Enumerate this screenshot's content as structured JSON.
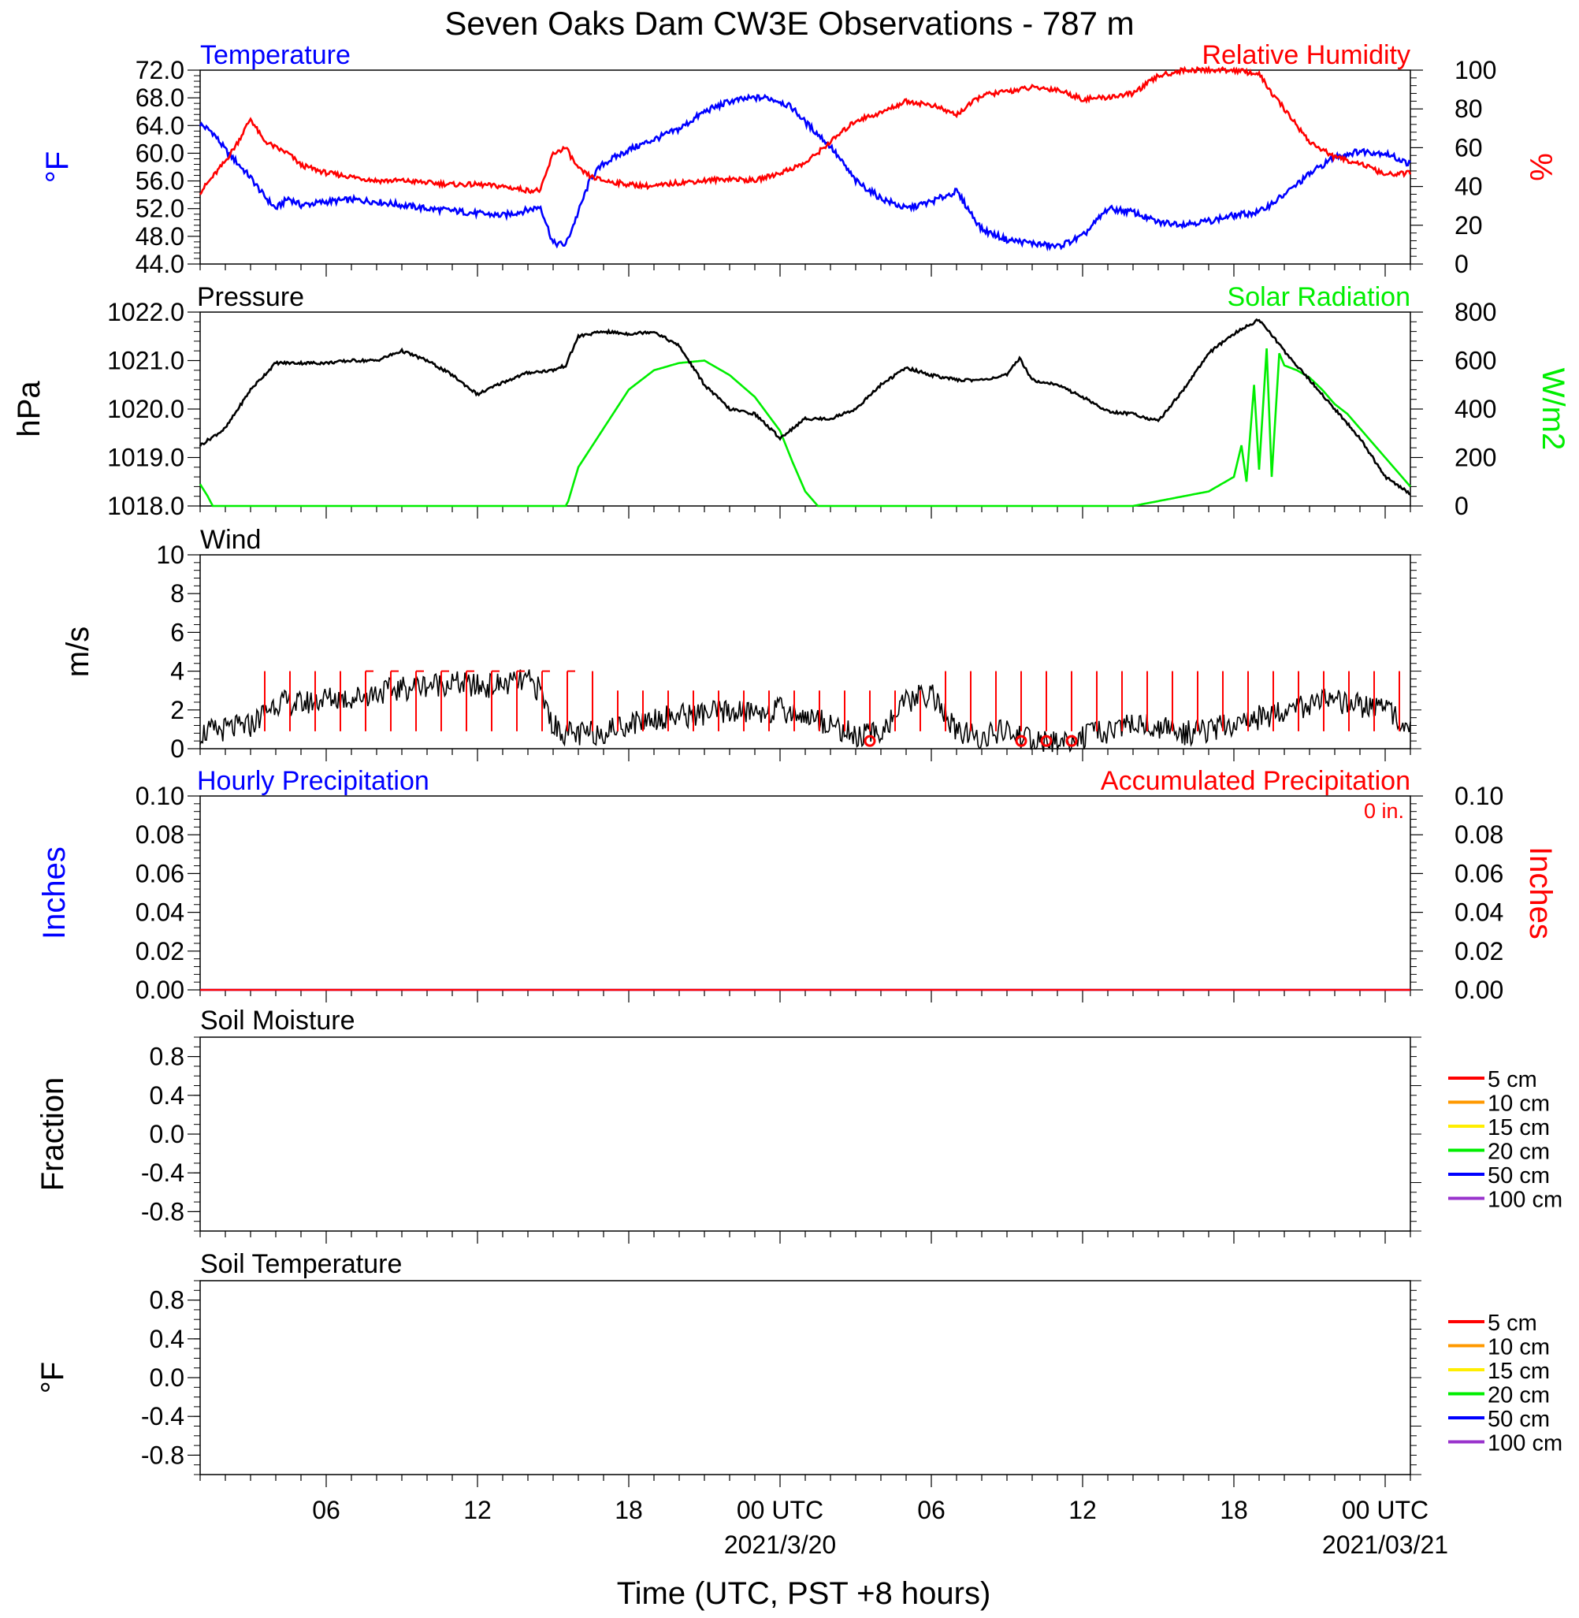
{
  "title": "Seven Oaks Dam CW3E Observations - 787 m",
  "colors": {
    "temperature": "#0000ff",
    "humidity": "#ff0000",
    "pressure": "#000000",
    "solar": "#00ee00",
    "wind": "#000000",
    "barb": "#ff0000",
    "hourly_precip": "#0000ff",
    "accum_precip": "#ff0000"
  },
  "x_axis": {
    "label": "Time (UTC, PST +8 hours)",
    "range_hours": [
      0,
      48
    ],
    "tick_labels": [
      {
        "hour": 5,
        "text": "06"
      },
      {
        "hour": 11,
        "text": "12"
      },
      {
        "hour": 17,
        "text": "18"
      },
      {
        "hour": 23,
        "text": "00 UTC",
        "sub": "2021/3/20"
      },
      {
        "hour": 29,
        "text": "06"
      },
      {
        "hour": 35,
        "text": "12"
      },
      {
        "hour": 41,
        "text": "18"
      },
      {
        "hour": 47,
        "text": "00 UTC",
        "sub": "2021/03/21"
      }
    ]
  },
  "chart_data": [
    {
      "type": "line",
      "panel": "temperature_humidity",
      "title_left": "Temperature",
      "title_right": "Relative Humidity",
      "ylabel_left": "°F",
      "ylabel_right": "%",
      "ylim_left": [
        44,
        72
      ],
      "ylim_right": [
        0,
        100
      ],
      "yticks_left": [
        "72.0",
        "68.0",
        "64.0",
        "60.0",
        "56.0",
        "52.0",
        "48.0",
        "44.0"
      ],
      "yticks_right": [
        "100",
        "80",
        "60",
        "40",
        "20",
        "0"
      ],
      "series": [
        {
          "name": "Temperature",
          "axis": "left",
          "x": [
            0,
            0.5,
            1,
            1.5,
            2,
            2.5,
            3,
            3.5,
            4,
            5,
            6,
            7,
            8,
            9,
            10,
            11,
            12,
            13,
            13.5,
            14,
            14.5,
            15,
            15.5,
            16,
            17,
            18,
            19,
            20,
            21,
            22,
            22.5,
            23,
            23.5,
            24,
            25,
            26,
            27,
            28,
            29,
            30,
            31,
            32,
            33,
            34,
            35,
            36,
            37,
            38,
            39,
            40,
            41,
            42,
            43,
            44,
            45,
            46,
            47,
            48
          ],
          "y": [
            64.2,
            63.0,
            60.5,
            58.5,
            56.5,
            54.0,
            52.0,
            53.5,
            52.5,
            53.0,
            53.3,
            53.0,
            52.5,
            52.0,
            51.7,
            51.3,
            51.0,
            51.8,
            52.3,
            47.0,
            46.8,
            51.5,
            56.5,
            58.5,
            60.5,
            62.0,
            63.5,
            66.0,
            67.5,
            68.0,
            68.0,
            67.5,
            66.5,
            64.5,
            61.0,
            56.0,
            53.5,
            52.0,
            53.0,
            54.5,
            49.0,
            47.5,
            47.0,
            46.5,
            48.0,
            52.0,
            51.5,
            50.0,
            49.8,
            50.2,
            51.0,
            51.5,
            54.0,
            57.0,
            59.5,
            60.3,
            60.0,
            58.4
          ]
        },
        {
          "name": "Relative Humidity",
          "axis": "right",
          "x": [
            0,
            1,
            1.5,
            2,
            2.5,
            3,
            3.5,
            4,
            5,
            6,
            7,
            8,
            9,
            10,
            11,
            12,
            13,
            13.5,
            14,
            14.5,
            15,
            15.5,
            16,
            17,
            18,
            19,
            20,
            21,
            22,
            23,
            24,
            25,
            26,
            27,
            28,
            29,
            30,
            31,
            32,
            33,
            34,
            35,
            36,
            37,
            38,
            39,
            40,
            41,
            42,
            42.5,
            43,
            44,
            45,
            46,
            47,
            48
          ],
          "y": [
            37,
            53,
            63,
            75,
            64,
            60,
            57,
            51,
            47,
            45,
            43,
            43,
            42,
            41,
            41,
            40,
            38,
            38,
            57,
            60,
            49,
            45,
            43,
            41,
            40,
            42,
            43,
            44,
            43,
            47,
            52,
            63,
            74,
            78,
            84,
            82,
            77,
            87,
            89,
            91,
            90,
            85,
            86,
            88,
            97,
            100,
            100,
            100,
            98,
            88,
            80,
            63,
            55,
            52,
            46,
            47
          ]
        }
      ]
    },
    {
      "type": "line",
      "panel": "pressure_solar",
      "title_left": "Pressure",
      "title_right": "Solar Radiation",
      "ylabel_left": "hPa",
      "ylabel_right": "W/m2",
      "ylim_left": [
        1018,
        1022
      ],
      "ylim_right": [
        0,
        800
      ],
      "yticks_left": [
        "1022.0",
        "1021.0",
        "1020.0",
        "1019.0",
        "1018.0"
      ],
      "yticks_right": [
        "800",
        "600",
        "400",
        "200",
        "0"
      ],
      "series": [
        {
          "name": "Pressure",
          "axis": "left",
          "x": [
            0,
            1,
            2,
            3,
            4,
            5,
            6,
            7,
            8,
            9,
            10,
            11,
            12,
            13,
            14,
            14.5,
            15,
            16,
            17,
            18,
            19,
            20,
            21,
            22,
            23,
            24,
            25,
            26,
            27,
            28,
            29,
            30,
            31,
            32,
            32.5,
            33,
            34,
            35,
            36,
            37,
            38,
            39,
            40,
            41,
            41.5,
            42,
            43,
            44,
            45,
            46,
            47,
            48
          ],
          "y": [
            1019.25,
            1019.6,
            1020.4,
            1020.95,
            1020.95,
            1020.95,
            1021.0,
            1021.0,
            1021.2,
            1021.0,
            1020.7,
            1020.3,
            1020.55,
            1020.75,
            1020.8,
            1020.9,
            1021.5,
            1021.6,
            1021.55,
            1021.6,
            1021.3,
            1020.5,
            1020.0,
            1019.9,
            1019.4,
            1019.8,
            1019.8,
            1020.0,
            1020.5,
            1020.85,
            1020.7,
            1020.6,
            1020.6,
            1020.7,
            1021.05,
            1020.6,
            1020.5,
            1020.25,
            1019.95,
            1019.9,
            1019.75,
            1020.4,
            1021.15,
            1021.55,
            1021.7,
            1021.85,
            1021.2,
            1020.6,
            1020.0,
            1019.4,
            1018.6,
            1018.25
          ]
        },
        {
          "name": "Solar Radiation",
          "axis": "right",
          "x": [
            0,
            0.3,
            0.5,
            14.5,
            14.6,
            15,
            16,
            17,
            18,
            19,
            20,
            21,
            22,
            23,
            23.5,
            24,
            24.5,
            25,
            37,
            38,
            39,
            40,
            41,
            41.3,
            41.5,
            41.8,
            42,
            42.3,
            42.5,
            42.8,
            43,
            43.5,
            44,
            44.5,
            45,
            45.5,
            46,
            47,
            48
          ],
          "y": [
            90,
            40,
            0,
            0,
            20,
            160,
            320,
            480,
            560,
            590,
            600,
            540,
            450,
            310,
            180,
            60,
            0,
            0,
            0,
            20,
            40,
            60,
            120,
            250,
            100,
            500,
            150,
            650,
            120,
            630,
            580,
            560,
            530,
            480,
            420,
            380,
            320,
            200,
            80
          ]
        }
      ]
    },
    {
      "type": "line",
      "panel": "wind",
      "title": "Wind",
      "ylabel": "m/s",
      "ylim": [
        0,
        10
      ],
      "yticks": [
        "10",
        "8",
        "6",
        "4",
        "2",
        "0"
      ],
      "series": [
        {
          "name": "Wind",
          "x": [
            0,
            1,
            2,
            3,
            4,
            5,
            6,
            7,
            8,
            9,
            10,
            11,
            12,
            13,
            13.5,
            14,
            14.5,
            15,
            16,
            17,
            18,
            19,
            20,
            21,
            22,
            23,
            24,
            25,
            26,
            27,
            28,
            29,
            30,
            31,
            32,
            33,
            34,
            35,
            36,
            37,
            38,
            39,
            40,
            41,
            42,
            43,
            44,
            45,
            46,
            47,
            48
          ],
          "y": [
            0.8,
            1.0,
            1.2,
            2.4,
            2.3,
            2.6,
            2.6,
            2.9,
            3.1,
            3.3,
            3.4,
            3.2,
            3.3,
            3.5,
            3.0,
            1.2,
            0.8,
            0.7,
            0.9,
            1.3,
            1.6,
            1.7,
            1.8,
            1.9,
            1.9,
            2.0,
            1.7,
            1.3,
            0.6,
            0.9,
            2.4,
            2.9,
            0.8,
            0.6,
            0.9,
            0.4,
            0.3,
            0.6,
            0.9,
            1.3,
            1.1,
            0.8,
            0.9,
            1.3,
            1.6,
            2.0,
            2.3,
            2.4,
            2.2,
            2.1,
            1.2
          ]
        }
      ],
      "barbs_hours": [
        2,
        3,
        4,
        5,
        6,
        7,
        8,
        9,
        10,
        11,
        12,
        13,
        14,
        15,
        16,
        17,
        18,
        19,
        20,
        21,
        22,
        23,
        24,
        25,
        26,
        27,
        28,
        29,
        30,
        31,
        32,
        33,
        34,
        35,
        36,
        37,
        38,
        39,
        40,
        41,
        42,
        43,
        44,
        45,
        46,
        47
      ],
      "calm_hours": [
        26,
        32,
        33,
        34
      ]
    },
    {
      "type": "line",
      "panel": "precipitation",
      "title_left": "Hourly Precipitation",
      "title_right": "Accumulated Precipitation",
      "annotation": "0 in.",
      "ylabel_left": "Inches",
      "ylabel_right": "Inches",
      "ylim_left": [
        0,
        0.1
      ],
      "ylim_right": [
        0,
        0.1
      ],
      "yticks_left": [
        "0.10",
        "0.08",
        "0.06",
        "0.04",
        "0.02",
        "0.00"
      ],
      "yticks_right": [
        "0.10",
        "0.08",
        "0.06",
        "0.04",
        "0.02",
        "0.00"
      ],
      "series": [
        {
          "name": "Hourly Precipitation",
          "axis": "left",
          "x": [
            0,
            48
          ],
          "y": [
            0,
            0
          ]
        },
        {
          "name": "Accumulated Precipitation",
          "axis": "right",
          "x": [
            0,
            48
          ],
          "y": [
            0,
            0
          ]
        }
      ]
    },
    {
      "type": "line",
      "panel": "soil_moisture",
      "title": "Soil Moisture",
      "ylabel": "Fraction",
      "yticks": [
        "0.8",
        "0.4",
        "0.0",
        "-0.4",
        "-0.8"
      ],
      "legend": [
        {
          "label": "5 cm",
          "color": "#ff0000"
        },
        {
          "label": "10 cm",
          "color": "#ff9900"
        },
        {
          "label": "15 cm",
          "color": "#ffee00"
        },
        {
          "label": "20 cm",
          "color": "#00ee00"
        },
        {
          "label": "50 cm",
          "color": "#0000ff"
        },
        {
          "label": "100 cm",
          "color": "#9933cc"
        }
      ],
      "series": []
    },
    {
      "type": "line",
      "panel": "soil_temperature",
      "title": "Soil Temperature",
      "ylabel": "°F",
      "yticks": [
        "0.8",
        "0.4",
        "0.0",
        "-0.4",
        "-0.8"
      ],
      "legend": [
        {
          "label": "5 cm",
          "color": "#ff0000"
        },
        {
          "label": "10 cm",
          "color": "#ff9900"
        },
        {
          "label": "15 cm",
          "color": "#ffee00"
        },
        {
          "label": "20 cm",
          "color": "#00ee00"
        },
        {
          "label": "50 cm",
          "color": "#0000ff"
        },
        {
          "label": "100 cm",
          "color": "#9933cc"
        }
      ],
      "series": []
    }
  ]
}
